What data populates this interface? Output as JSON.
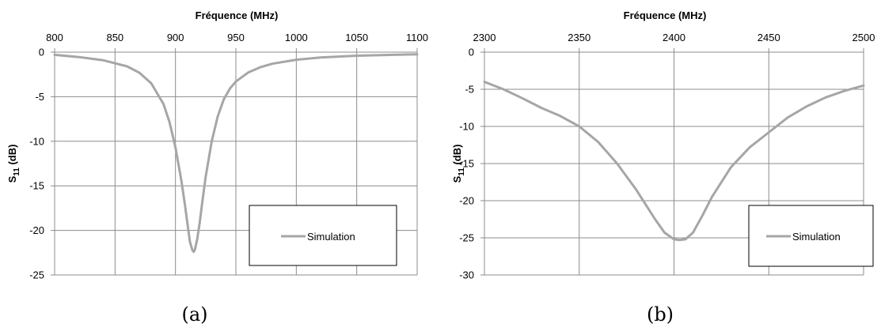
{
  "chart_data": [
    {
      "type": "line",
      "caption": "(a)",
      "xlabel": "Fréquence (MHz)",
      "ylabel_main": "S",
      "ylabel_sub": "11",
      "ylabel_unit": " (dB)",
      "x_axis_position": "top",
      "xlim": [
        800,
        1100
      ],
      "ylim": [
        -25,
        0
      ],
      "xticks": [
        800,
        850,
        900,
        950,
        1000,
        1050,
        1100
      ],
      "yticks": [
        0,
        -5,
        -10,
        -15,
        -20,
        -25
      ],
      "grid": true,
      "legend_placement": "bottom-right",
      "series": [
        {
          "name": "Simulation",
          "color": "#a6a6a6",
          "x": [
            800,
            820,
            840,
            860,
            870,
            880,
            890,
            895,
            900,
            905,
            908,
            910,
            912,
            914,
            915,
            916,
            918,
            920,
            922,
            925,
            930,
            935,
            940,
            945,
            950,
            960,
            970,
            980,
            1000,
            1020,
            1050,
            1080,
            1100
          ],
          "y": [
            -0.3,
            -0.55,
            -0.9,
            -1.6,
            -2.3,
            -3.5,
            -5.8,
            -7.8,
            -10.7,
            -14.5,
            -17.3,
            -19.3,
            -21.3,
            -22.2,
            -22.4,
            -22.2,
            -21.0,
            -19.2,
            -17.0,
            -14.0,
            -10.0,
            -7.2,
            -5.3,
            -4.1,
            -3.3,
            -2.3,
            -1.7,
            -1.3,
            -0.85,
            -0.6,
            -0.4,
            -0.3,
            -0.25
          ]
        }
      ]
    },
    {
      "type": "line",
      "caption": "(b)",
      "xlabel": "Fréquence (MHz)",
      "ylabel_main": "S",
      "ylabel_sub": "11",
      "ylabel_unit": " (dB)",
      "x_axis_position": "top",
      "xlim": [
        2300,
        2500
      ],
      "ylim": [
        -30,
        0
      ],
      "xticks": [
        2300,
        2350,
        2400,
        2450,
        2500
      ],
      "yticks": [
        0,
        -5,
        -10,
        -15,
        -20,
        -25,
        -30
      ],
      "grid": true,
      "legend_placement": "bottom-right",
      "series": [
        {
          "name": "Simulation",
          "color": "#a6a6a6",
          "x": [
            2300,
            2310,
            2320,
            2330,
            2340,
            2350,
            2360,
            2370,
            2380,
            2390,
            2395,
            2400,
            2403,
            2406,
            2410,
            2415,
            2420,
            2430,
            2440,
            2450,
            2460,
            2470,
            2480,
            2490,
            2500
          ],
          "y": [
            -4.0,
            -5.0,
            -6.2,
            -7.5,
            -8.6,
            -10.0,
            -12.1,
            -15.0,
            -18.5,
            -22.5,
            -24.3,
            -25.2,
            -25.3,
            -25.2,
            -24.3,
            -22.0,
            -19.5,
            -15.5,
            -12.8,
            -10.8,
            -8.8,
            -7.3,
            -6.1,
            -5.2,
            -4.5
          ]
        }
      ]
    }
  ]
}
